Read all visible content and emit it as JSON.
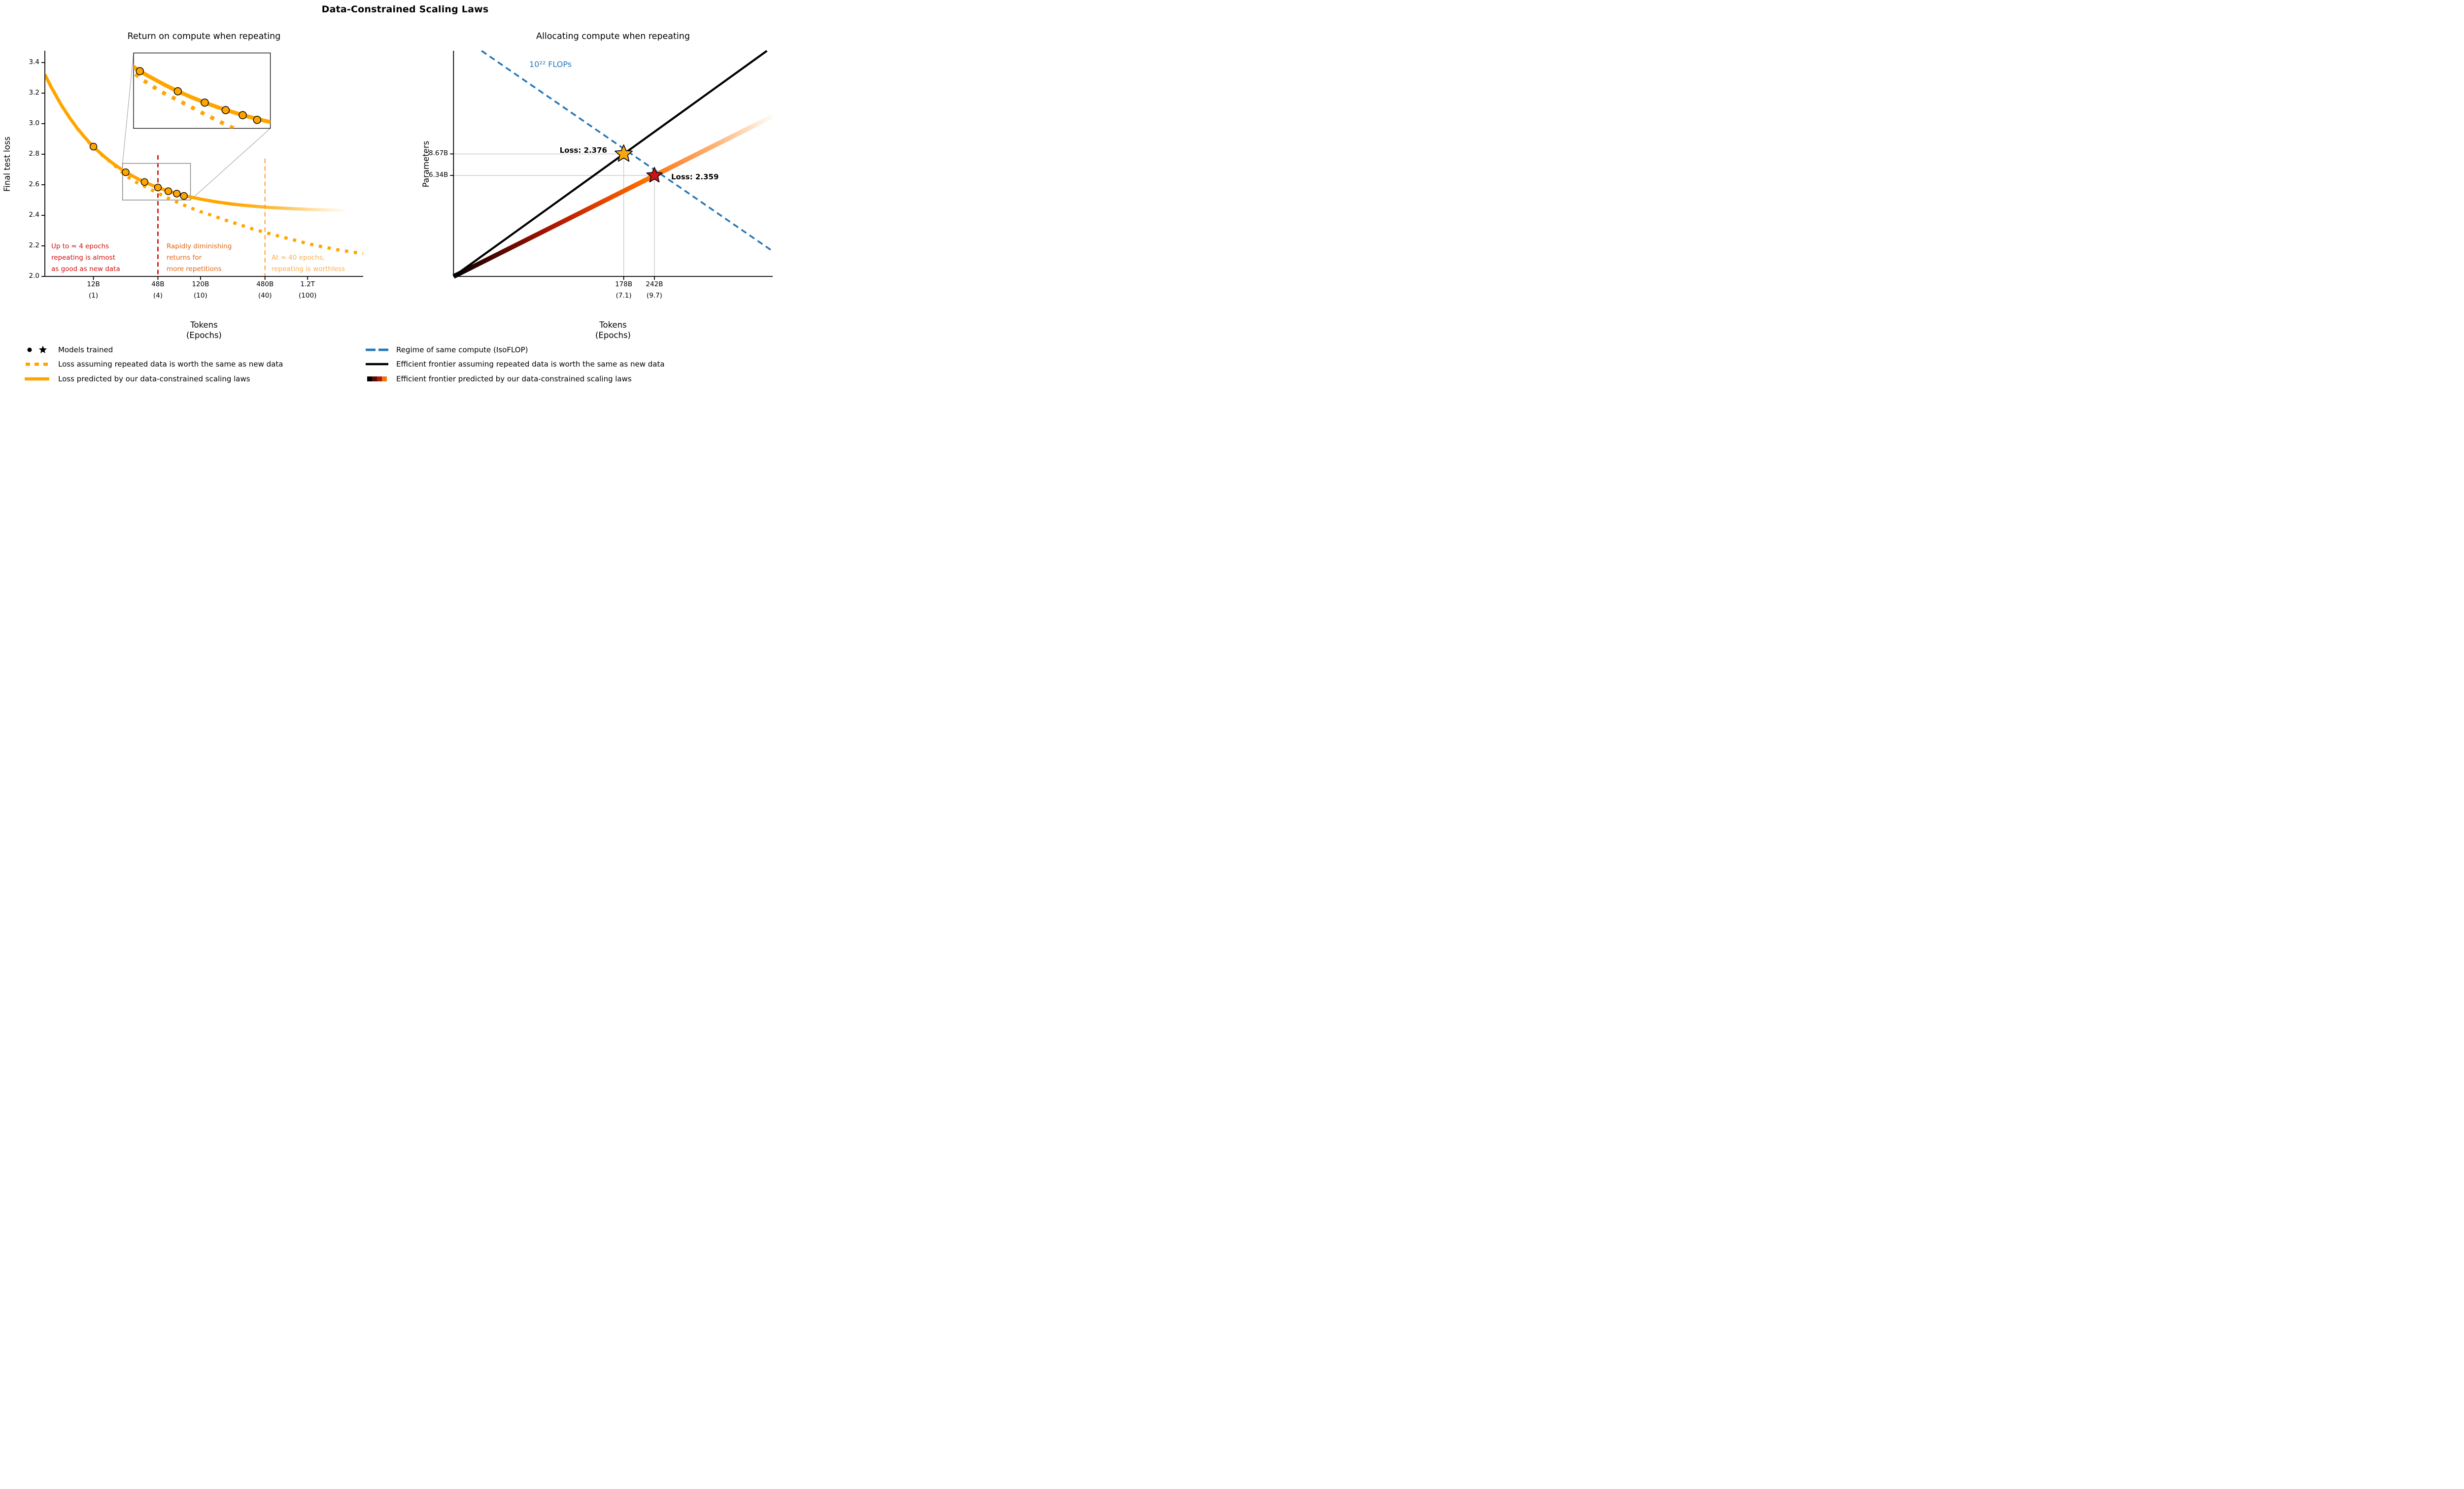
{
  "figure": {
    "title": "Data-Constrained Scaling Laws"
  },
  "colors": {
    "orange": "#FFA500",
    "red": "#D40D0D",
    "dark_orange": "#E4650F",
    "light_orange": "#FBAD4F",
    "blue": "#2878B8",
    "black": "#000000",
    "ref_gray": "#C9C9C9",
    "inset_gray": "#8A8A8A",
    "connector_gray": "#9A9A9A",
    "star_yellow": "#F7A711",
    "star_red": "#CC1414",
    "frontier_gradient": [
      "#000000",
      "#3F0400",
      "#7F0C00",
      "#BC1F00",
      "#E84800",
      "#FB7100",
      "#FD9344",
      "#FDB475",
      "#FDD5AE",
      "#FEEBD9"
    ],
    "legend_gradient_bands": [
      "#000000",
      "#5A0B08",
      "#B01A02",
      "#EE7511"
    ]
  },
  "chart_data": [
    {
      "id": "left",
      "type": "line",
      "title": "Return on compute when repeating",
      "ylabel": "Final test loss",
      "xlabel": "Tokens",
      "xlabel2": "(Epochs)",
      "x_scale": "log",
      "ylim": [
        2.0,
        3.48
      ],
      "x_ticks": [
        {
          "epochs": 1,
          "tokens": "12B",
          "epochs_label": "(1)"
        },
        {
          "epochs": 4,
          "tokens": "48B",
          "epochs_label": "(4)"
        },
        {
          "epochs": 10,
          "tokens": "120B",
          "epochs_label": "(10)"
        },
        {
          "epochs": 40,
          "tokens": "480B",
          "epochs_label": "(40)"
        },
        {
          "epochs": 100,
          "tokens": "1.2T",
          "epochs_label": "(100)"
        }
      ],
      "y_ticks": [
        "2.0",
        "2.2",
        "2.4",
        "2.6",
        "2.8",
        "3.0",
        "3.2",
        "3.4"
      ],
      "series": [
        {
          "name": "Loss assuming repeated data is worth the same as new data",
          "style": "dotted",
          "color_key": "orange",
          "points_epochs_loss": [
            [
              0.352,
              3.32
            ],
            [
              0.5,
              3.121
            ],
            [
              0.7,
              2.972
            ],
            [
              0.9,
              2.88
            ],
            [
              1,
              2.848
            ],
            [
              1.2,
              2.795
            ],
            [
              1.5,
              2.74
            ],
            [
              2,
              2.66
            ],
            [
              2.5,
              2.617
            ],
            [
              3,
              2.59
            ],
            [
              4,
              2.545
            ],
            [
              5,
              2.512
            ],
            [
              6,
              2.487
            ],
            [
              8,
              2.45
            ],
            [
              10,
              2.424
            ],
            [
              13,
              2.398
            ],
            [
              17,
              2.369
            ],
            [
              22,
              2.344
            ],
            [
              30,
              2.313
            ],
            [
              40,
              2.288
            ],
            [
              55,
              2.262
            ],
            [
              75,
              2.238
            ],
            [
              100,
              2.215
            ],
            [
              140,
              2.193
            ],
            [
              200,
              2.172
            ],
            [
              270,
              2.158
            ],
            [
              340,
              2.149
            ]
          ]
        },
        {
          "name": "Loss predicted by our data-constrained scaling laws",
          "style": "solid",
          "color_key": "orange",
          "fades_out": true,
          "points_epochs_loss": [
            [
              0.352,
              3.322
            ],
            [
              0.4,
              3.244
            ],
            [
              0.5,
              3.123
            ],
            [
              0.6,
              3.038
            ],
            [
              0.7,
              2.974
            ],
            [
              0.8,
              2.924
            ],
            [
              0.9,
              2.883
            ],
            [
              1,
              2.85
            ],
            [
              1.1,
              2.822
            ],
            [
              1.3,
              2.777
            ],
            [
              1.5,
              2.743
            ],
            [
              1.7,
              2.716
            ],
            [
              2,
              2.682
            ],
            [
              2.2,
              2.666
            ],
            [
              2.6,
              2.639
            ],
            [
              3,
              2.618
            ],
            [
              3.5,
              2.598
            ],
            [
              4,
              2.582
            ],
            [
              4.7,
              2.565
            ],
            [
              5.5,
              2.55
            ],
            [
              6,
              2.542
            ],
            [
              7.5,
              2.525
            ],
            [
              10,
              2.506
            ],
            [
              14,
              2.488
            ],
            [
              20,
              2.473
            ],
            [
              25,
              2.466
            ],
            [
              30,
              2.461
            ],
            [
              45,
              2.451
            ],
            [
              55,
              2.448
            ],
            [
              70,
              2.444
            ],
            [
              110,
              2.438
            ],
            [
              140,
              2.436
            ],
            [
              180,
              2.434
            ],
            [
              240,
              2.431
            ]
          ]
        }
      ],
      "models_trained_epochs_loss": [
        [
          1,
          2.85
        ],
        [
          2,
          2.682
        ],
        [
          3,
          2.618
        ],
        [
          4,
          2.582
        ],
        [
          5,
          2.558
        ],
        [
          6,
          2.542
        ],
        [
          7,
          2.527
        ]
      ],
      "vlines": [
        {
          "epochs": 4,
          "color_key": "red"
        },
        {
          "epochs": 40,
          "color_key": "light_orange"
        }
      ],
      "annotations": [
        {
          "text": "Up to ≈ 4 epochs\nrepeating is almost\nas good as new data",
          "color_key": "red"
        },
        {
          "text": "Rapidly diminishing\nreturns for\nmore repetitions",
          "color_key": "dark_orange"
        },
        {
          "text": "At ≈ 40 epochs,\nrepeating is worthless",
          "color_key": "light_orange"
        }
      ],
      "inset": {
        "x_range_epochs": [
          1.87,
          8.06
        ],
        "y_range_loss": [
          2.5,
          2.74
        ]
      }
    },
    {
      "id": "right",
      "type": "line",
      "title": "Allocating compute when repeating",
      "ylabel": "Parameters",
      "xlabel": "Tokens",
      "xlabel2": "(Epochs)",
      "x_scale": "log",
      "y_scale": "log",
      "x_ticks": [
        {
          "tokens_b": 178,
          "tokens": "178B",
          "epochs_label": "(7.1)"
        },
        {
          "tokens_b": 242,
          "tokens": "242B",
          "epochs_label": "(9.7)"
        }
      ],
      "y_ticks": [
        {
          "params_b": 8.67,
          "label": "8.67B"
        },
        {
          "params_b": 6.34,
          "label": "6.34B"
        }
      ],
      "isoflop_line": {
        "label": "10²² FLOPs",
        "color_key": "blue",
        "points_tokens_b_params_b": [
          [
            43,
            38.8
          ],
          [
            789,
            2.11
          ]
        ]
      },
      "frontier_equal_line": {
        "color_key": "black",
        "points_tokens_b_params_b": [
          [
            32.5,
            1.46
          ],
          [
            745,
            38.8
          ]
        ]
      },
      "frontier_predicted_line": {
        "gradient": true,
        "points_tokens_b_params_b": [
          [
            32.5,
            1.46
          ],
          [
            789,
            15.0
          ]
        ]
      },
      "stars": [
        {
          "tokens_b": 178,
          "params_b": 8.67,
          "label": "Loss: 2.376",
          "color_key": "star_yellow",
          "size": 18.5
        },
        {
          "tokens_b": 242,
          "params_b": 6.34,
          "label": "Loss: 2.359",
          "color_key": "star_red",
          "size": 16.5
        }
      ],
      "ref_lines": {
        "horizontal_params_b": [
          8.67,
          6.34
        ],
        "vertical_tokens_b": [
          178,
          242
        ]
      }
    }
  ],
  "legend_left": {
    "items": [
      {
        "swatch": "models",
        "label": "Models trained"
      },
      {
        "swatch": "dotted_orange",
        "label": "Loss assuming repeated data is worth the same as new data"
      },
      {
        "swatch": "solid_orange",
        "label": "Loss predicted by our data-constrained scaling laws"
      }
    ]
  },
  "legend_right": {
    "items": [
      {
        "swatch": "dashed_blue",
        "label": "Regime of same compute (IsoFLOP)"
      },
      {
        "swatch": "solid_black",
        "label": "Efficient frontier assuming repeated data is worth the same as new data"
      },
      {
        "swatch": "gradient",
        "label": "Efficient frontier predicted by our data-constrained scaling laws"
      }
    ]
  }
}
